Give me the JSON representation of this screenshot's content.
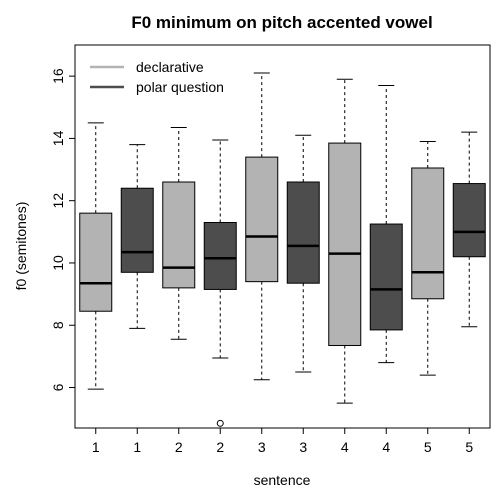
{
  "chart_data": {
    "type": "boxplot",
    "title": "F0 minimum on pitch accented vowel",
    "xlabel": "sentence",
    "ylabel": "f0 (semitones)",
    "ylim": [
      4.7,
      17.0
    ],
    "yticks": [
      6,
      8,
      10,
      12,
      14,
      16
    ],
    "categories": [
      "1",
      "1",
      "2",
      "2",
      "3",
      "3",
      "4",
      "4",
      "5",
      "5"
    ],
    "legend": {
      "placement": "top-left",
      "entries": [
        {
          "label": "declarative",
          "color": "#b3b3b3"
        },
        {
          "label": "polar question",
          "color": "#4d4d4d"
        }
      ]
    },
    "boxes": [
      {
        "category": "1",
        "group": "declarative",
        "min": 5.95,
        "q1": 8.45,
        "median": 9.35,
        "q3": 11.6,
        "max": 14.5,
        "outliers": []
      },
      {
        "category": "1",
        "group": "polar question",
        "min": 7.9,
        "q1": 9.7,
        "median": 10.35,
        "q3": 12.4,
        "max": 13.8,
        "outliers": []
      },
      {
        "category": "2",
        "group": "declarative",
        "min": 7.55,
        "q1": 9.2,
        "median": 9.85,
        "q3": 12.6,
        "max": 14.35,
        "outliers": []
      },
      {
        "category": "2",
        "group": "polar question",
        "min": 6.95,
        "q1": 9.15,
        "median": 10.15,
        "q3": 11.3,
        "max": 13.95,
        "outliers": [
          4.85
        ]
      },
      {
        "category": "3",
        "group": "declarative",
        "min": 6.25,
        "q1": 9.4,
        "median": 10.85,
        "q3": 13.4,
        "max": 16.1,
        "outliers": []
      },
      {
        "category": "3",
        "group": "polar question",
        "min": 6.5,
        "q1": 9.35,
        "median": 10.55,
        "q3": 12.6,
        "max": 14.1,
        "outliers": []
      },
      {
        "category": "4",
        "group": "declarative",
        "min": 5.5,
        "q1": 7.35,
        "median": 10.3,
        "q3": 13.85,
        "max": 15.9,
        "outliers": []
      },
      {
        "category": "4",
        "group": "polar question",
        "min": 6.8,
        "q1": 7.85,
        "median": 9.15,
        "q3": 11.25,
        "max": 15.7,
        "outliers": []
      },
      {
        "category": "5",
        "group": "declarative",
        "min": 6.4,
        "q1": 8.85,
        "median": 9.7,
        "q3": 13.05,
        "max": 13.9,
        "outliers": []
      },
      {
        "category": "5",
        "group": "polar question",
        "min": 7.95,
        "q1": 10.2,
        "median": 11.0,
        "q3": 12.55,
        "max": 14.2,
        "outliers": []
      }
    ]
  }
}
